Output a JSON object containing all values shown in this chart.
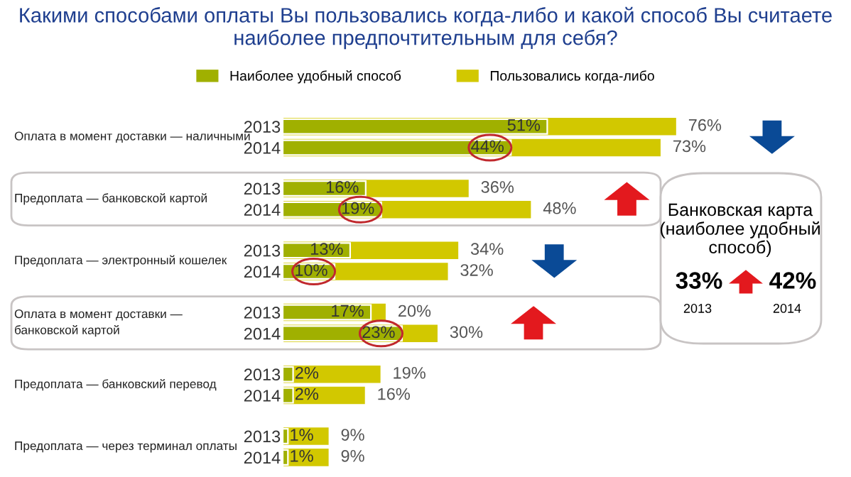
{
  "chart_data": {
    "type": "bar",
    "orientation": "horizontal",
    "title": "Какими способами оплаты Вы пользовались когда-либо и какой способ Вы считаете наиболее предпочтительным для себя?",
    "categories": [
      "2013",
      "2014",
      "2013",
      "2014",
      "2013",
      "2014",
      "2013",
      "2014",
      "2013",
      "2014",
      "2013",
      "2014"
    ],
    "series": [
      {
        "name": "Пользовались когда-либо",
        "color": "#d2c800",
        "values": [
          76,
          73,
          36,
          48,
          34,
          32,
          20,
          30,
          19,
          16,
          9,
          9
        ],
        "value_labels": [
          "76%",
          "73%",
          "36%",
          "48%",
          "34%",
          "32%",
          "20%",
          "30%",
          "19%",
          "16%",
          "9%",
          "9%"
        ]
      },
      {
        "name": "Наиболее удобный способ",
        "color": "#a0b000",
        "values": [
          51,
          44,
          16,
          19,
          13,
          10,
          17,
          23,
          2,
          2,
          1,
          1
        ],
        "value_labels": [
          "51%",
          "44%",
          "16%",
          "19%",
          "13%",
          "10%",
          "17%",
          "23%",
          "2%",
          "2%",
          "1%",
          "1%"
        ]
      }
    ],
    "annotations": [
      "Оплата в момент доставки — наличными",
      "Предоплата — банковской картой",
      "Предоплата — электронный кошелек",
      "Оплата в момент доставки —\nбанковской картой",
      "Предоплата — банковский перевод",
      "Предоплата — через терминал оплаты",
      "Банковская карта\n(наиболее удобный\nспособ)",
      "33%",
      "42%",
      "2013",
      "2014"
    ],
    "legend": "top",
    "tick_labels": "y",
    "grid": false
  }
}
